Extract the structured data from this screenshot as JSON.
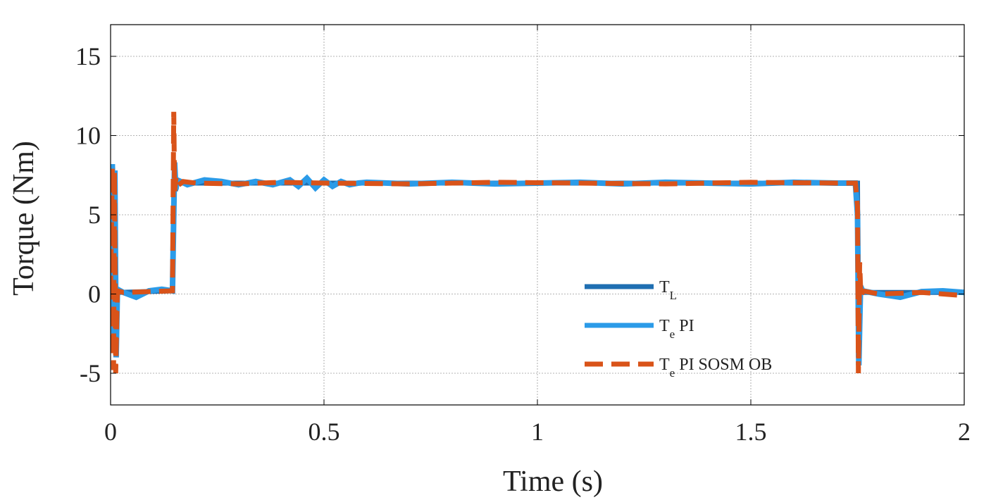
{
  "chart_data": {
    "type": "line",
    "title": "",
    "xlabel": "Time (s)",
    "ylabel": "Torque (Nm)",
    "xlim": [
      0,
      2
    ],
    "ylim": [
      -7,
      17
    ],
    "xticks": [
      0,
      0.5,
      1,
      1.5,
      2
    ],
    "xtick_labels": [
      "0",
      "0.5",
      "1",
      "1.5",
      "2"
    ],
    "yticks": [
      -5,
      0,
      5,
      10,
      15
    ],
    "ytick_labels": [
      "-5",
      "0",
      "5",
      "10",
      "15"
    ],
    "grid": true,
    "legend_position": "lower-right",
    "series": [
      {
        "key": "TL",
        "legend": {
          "main": "T",
          "sub": "L",
          "suffix": ""
        },
        "color": "#1f6fb2",
        "dash": "solid",
        "x": [
          0,
          0.005,
          0.008,
          0.01,
          0.013,
          0.015,
          0.02,
          0.145,
          0.15,
          0.152,
          0.155,
          0.2,
          1.748,
          1.75,
          1.752,
          1.755,
          1.76,
          2.0
        ],
        "y": [
          0,
          8,
          0,
          7.5,
          -3,
          0,
          0.1,
          0.2,
          8,
          6.5,
          7,
          7,
          7,
          7,
          -4,
          0.5,
          0.1,
          0.1
        ]
      },
      {
        "key": "TePI",
        "legend": {
          "main": "T",
          "sub": "e",
          "suffix": " PI"
        },
        "color": "#2b9be8",
        "dash": "solid",
        "x": [
          0,
          0.004,
          0.008,
          0.01,
          0.013,
          0.016,
          0.03,
          0.06,
          0.09,
          0.12,
          0.145,
          0.15,
          0.153,
          0.156,
          0.18,
          0.22,
          0.26,
          0.3,
          0.34,
          0.38,
          0.42,
          0.44,
          0.46,
          0.48,
          0.5,
          0.52,
          0.54,
          0.56,
          0.58,
          0.6,
          0.7,
          0.8,
          0.9,
          1.0,
          1.1,
          1.2,
          1.3,
          1.4,
          1.5,
          1.6,
          1.7,
          1.745,
          1.75,
          1.753,
          1.757,
          1.762,
          1.8,
          1.85,
          1.9,
          1.95,
          2.0
        ],
        "y": [
          0,
          8.2,
          -3.5,
          7.8,
          -4,
          0.3,
          0.1,
          -0.2,
          0.2,
          0.3,
          0.2,
          8.3,
          6.6,
          7.2,
          6.9,
          7.2,
          7.1,
          6.9,
          7.1,
          6.9,
          7.2,
          6.8,
          7.3,
          6.7,
          7.2,
          6.8,
          7.1,
          6.9,
          7.0,
          7.05,
          6.95,
          7.05,
          6.95,
          7.0,
          7.05,
          6.95,
          7.05,
          7.0,
          6.95,
          7.05,
          7.0,
          7.0,
          5,
          -4.5,
          0.5,
          0.2,
          0.0,
          -0.2,
          0.15,
          0.2,
          0.1
        ]
      },
      {
        "key": "TePISOSMOB",
        "legend": {
          "main": "T",
          "sub": "e",
          "suffix": " PI SOSM OB"
        },
        "color": "#d95319",
        "dash": "dashed",
        "x": [
          0,
          0.004,
          0.007,
          0.009,
          0.012,
          0.016,
          0.03,
          0.145,
          0.148,
          0.15,
          0.153,
          0.156,
          0.17,
          0.2,
          0.3,
          0.4,
          0.5,
          0.7,
          0.9,
          1.1,
          1.3,
          1.5,
          1.7,
          1.745,
          1.75,
          1.752,
          1.755,
          1.758,
          1.762,
          1.8,
          1.9,
          2.0
        ],
        "y": [
          0,
          8,
          -4.8,
          7.8,
          -5,
          0.2,
          0.1,
          0.2,
          11.5,
          6.5,
          7.3,
          6.8,
          7.1,
          7.0,
          6.95,
          7.05,
          7.0,
          6.95,
          7.05,
          7.0,
          6.95,
          7.05,
          7.0,
          7.0,
          5.5,
          -5,
          2,
          -0.2,
          0.2,
          0.0,
          0.1,
          -0.1
        ]
      }
    ]
  }
}
